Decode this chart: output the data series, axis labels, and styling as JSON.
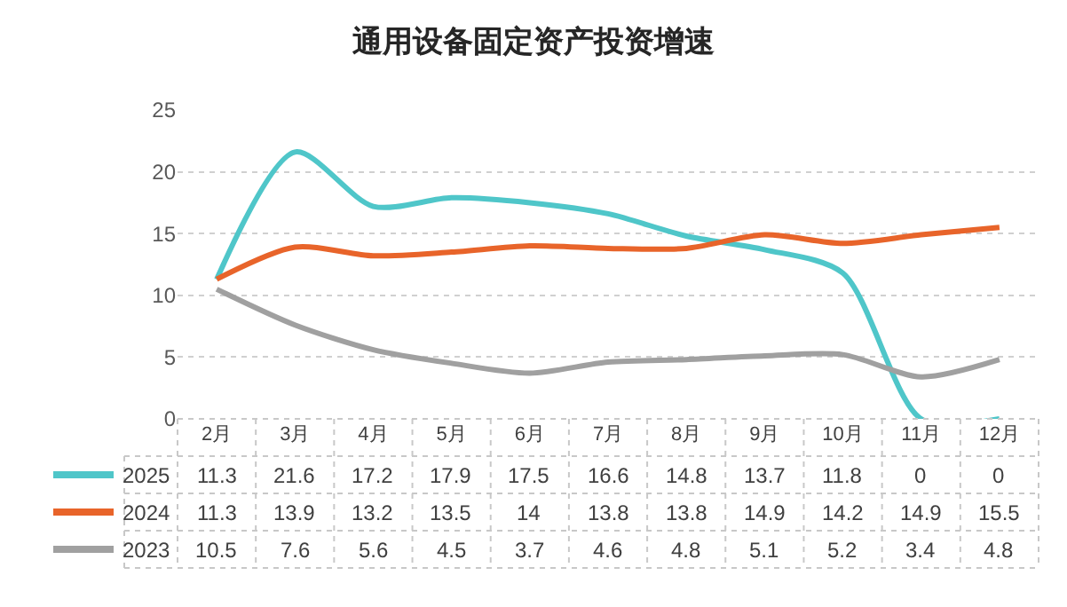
{
  "chart_data": {
    "type": "line",
    "title": "通用设备固定资产投资增速",
    "categories": [
      "2月",
      "3月",
      "4月",
      "5月",
      "6月",
      "7月",
      "8月",
      "9月",
      "10月",
      "11月",
      "12月"
    ],
    "series": [
      {
        "name": "2025",
        "color": "#4fc6c9",
        "values": [
          11.3,
          21.6,
          17.2,
          17.9,
          17.5,
          16.6,
          14.8,
          13.7,
          11.8,
          0,
          0
        ]
      },
      {
        "name": "2024",
        "color": "#e8642a",
        "values": [
          11.3,
          13.9,
          13.2,
          13.5,
          14,
          13.8,
          13.8,
          14.9,
          14.2,
          14.9,
          15.5
        ]
      },
      {
        "name": "2023",
        "color": "#a0a0a0",
        "values": [
          10.5,
          7.6,
          5.6,
          4.5,
          3.7,
          4.6,
          4.8,
          5.1,
          5.2,
          3.4,
          4.8
        ]
      }
    ],
    "ylim": [
      0,
      25
    ],
    "yticks": [
      0,
      5,
      10,
      15,
      20,
      25
    ],
    "grid": "y",
    "legend": "bottom",
    "data_labels": true,
    "marker": "none",
    "line_style": "solid"
  }
}
